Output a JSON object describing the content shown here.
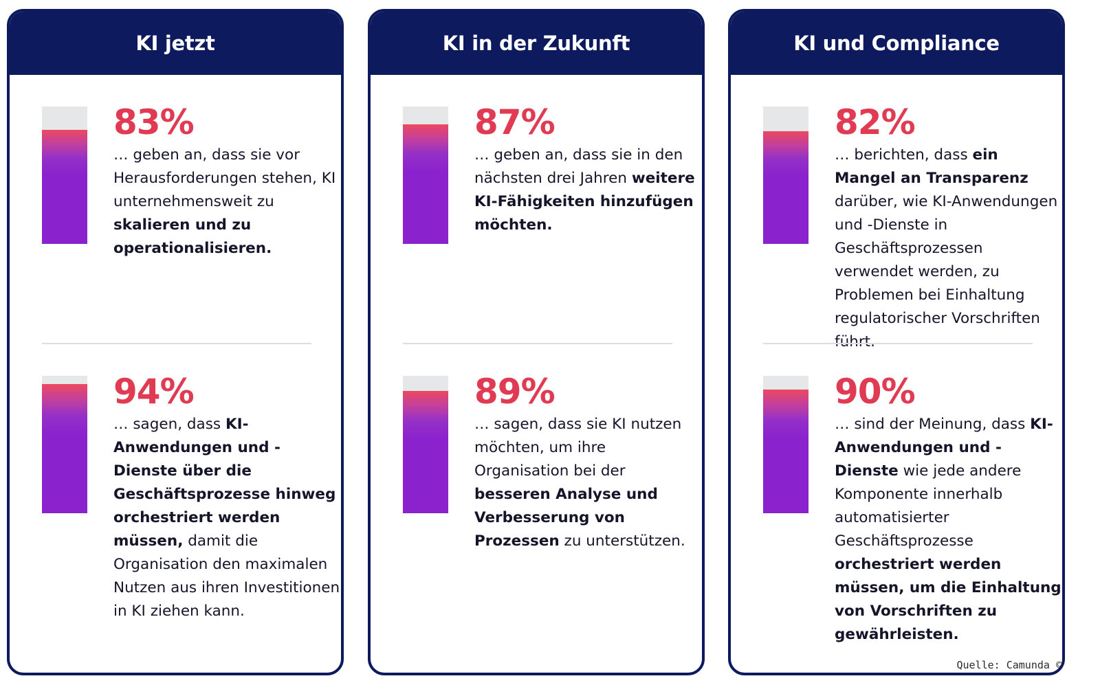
{
  "chart_data": [
    {
      "type": "bar",
      "title": "KI jetzt",
      "unit": "%",
      "items": [
        {
          "value": 83,
          "label": "83%",
          "text": [
            {
              "t": "… geben an, dass sie vor Herausforderungen stehen, KI unternehmensweit zu "
            },
            {
              "t": "skalieren und zu operationalisieren.",
              "b": true
            }
          ]
        },
        {
          "value": 94,
          "label": "94%",
          "text": [
            {
              "t": "… sagen, dass "
            },
            {
              "t": "KI-Anwendungen und -Dienste über die Geschäftsprozesse hinweg orchestriert werden müssen,",
              "b": true
            },
            {
              "t": " damit die Organisation den maximalen Nutzen aus ihren Investitionen in KI ziehen kann."
            }
          ]
        }
      ]
    },
    {
      "type": "bar",
      "title": "KI in der Zukunft",
      "unit": "%",
      "items": [
        {
          "value": 87,
          "label": "87%",
          "text": [
            {
              "t": "… geben an, dass sie in den nächsten drei Jahren "
            },
            {
              "t": "weitere KI-Fähigkeiten hinzufügen möchten.",
              "b": true
            }
          ]
        },
        {
          "value": 89,
          "label": "89%",
          "text": [
            {
              "t": "… sagen, dass sie KI nutzen möchten, um ihre Organisation bei der "
            },
            {
              "t": "besseren Analyse und Verbesserung von Prozessen",
              "b": true
            },
            {
              "t": " zu unterstützen."
            }
          ]
        }
      ]
    },
    {
      "type": "bar",
      "title": "KI und Compliance",
      "unit": "%",
      "items": [
        {
          "value": 82,
          "label": "82%",
          "text": [
            {
              "t": "… berichten, dass "
            },
            {
              "t": "ein Mangel an Transparenz",
              "b": true
            },
            {
              "t": " darüber, wie KI-Anwendungen und -Dienste in Geschäftsprozessen verwendet werden, zu Problemen bei Einhaltung regulatorischer Vorschriften führt."
            }
          ]
        },
        {
          "value": 90,
          "label": "90%",
          "text": [
            {
              "t": "… sind der Meinung, dass "
            },
            {
              "t": "KI-Anwendungen und -Dienste",
              "b": true
            },
            {
              "t": " wie jede andere Komponente innerhalb automatisierter Geschäftsprozesse "
            },
            {
              "t": "orchestriert werden müssen, um die Einhaltung von Vorschriften zu gewährleisten.",
              "b": true
            }
          ]
        }
      ]
    }
  ],
  "colors": {
    "header_bg": "#0d1a5e",
    "percent_text": "#e03b52",
    "bar_track": "#e5e7e9",
    "bar_gradient_top": "#ec4960",
    "bar_gradient_bottom": "#8a22cd"
  },
  "source": "Quelle: Camunda ©"
}
